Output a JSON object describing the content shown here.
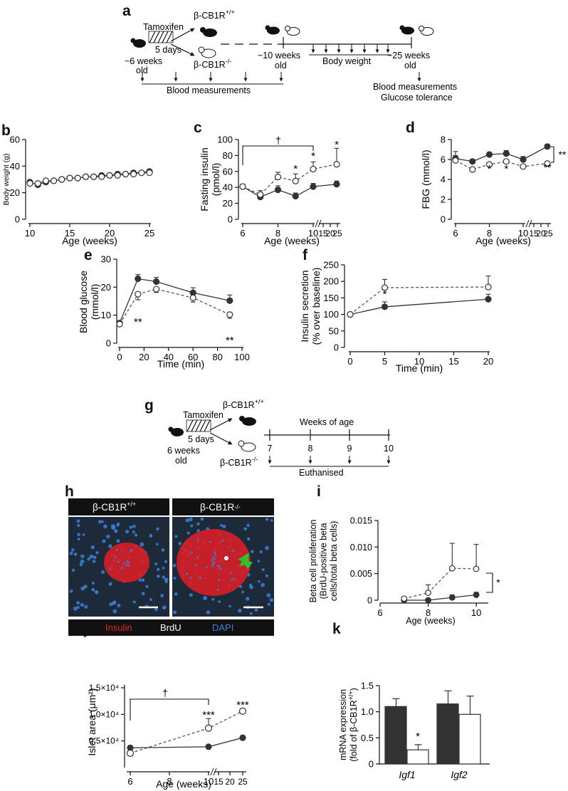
{
  "panel_letters": {
    "a": "a",
    "b": "b",
    "c": "c",
    "d": "d",
    "e": "e",
    "f": "f",
    "g": "g",
    "h": "h",
    "i": "i",
    "j": "j",
    "k": "k"
  },
  "timeline_a": {
    "tamoxifen": "Tamoxifen",
    "days": "5 days",
    "wt_label": "β-CB1R",
    "wt_sup": "+/+",
    "ko_label": "β-CB1R",
    "ko_sup": "-/-",
    "start_age_1": "~6 weeks",
    "start_age_2": "old",
    "mid_age_1": "~10 weeks",
    "mid_age_2": "old",
    "end_age_1": "~25 weeks",
    "end_age_2": "old",
    "body_weight": "Body weight",
    "blood_measurements": "Blood measurements",
    "end_blood": "Blood measurements",
    "end_glucose": "Glucose tolerance"
  },
  "timeline_g": {
    "tamoxifen": "Tamoxifen",
    "days": "5 days",
    "wt_label": "β-CB1R",
    "wt_sup": "+/+",
    "ko_label": "β-CB1R",
    "ko_sup": "-/-",
    "age_1": "6 weeks",
    "age_2": "old",
    "weeks_of_age": "Weeks of age",
    "ticks": [
      "7",
      "8",
      "9",
      "10"
    ],
    "euthanised": "Euthanised"
  },
  "micrograph_h": {
    "wt_title": "β-CB1R",
    "wt_sup": "+/+",
    "ko_title": "β-CB1R",
    "ko_sup": "-/-",
    "legend_insulin": "Insulin",
    "legend_brdu": "BrdU",
    "legend_dapi": "DAPI",
    "color_insulin": "#e8242a",
    "color_dapi": "#3d7fd6",
    "color_arrow": "#2ec02e"
  },
  "chart_data": [
    {
      "id": "b",
      "type": "line",
      "xlabel": "Age (weeks)",
      "ylabel": "Body weight (g)",
      "xlim": [
        10,
        25
      ],
      "ylim": [
        0,
        60
      ],
      "xticks": [
        "10",
        "15",
        "20",
        "25"
      ],
      "yticks": [
        "0",
        "20",
        "40",
        "60"
      ],
      "x": [
        10,
        11,
        12,
        13,
        14,
        15,
        16,
        17,
        18,
        19,
        20,
        21,
        22,
        23,
        24,
        25
      ],
      "series": [
        {
          "name": "β-CB1R+/+",
          "values": [
            28,
            26,
            28,
            29,
            30,
            31,
            31,
            32,
            32,
            33,
            33,
            34,
            34,
            35,
            35,
            36
          ]
        },
        {
          "name": "β-CB1R-/-",
          "values": [
            27,
            27,
            29,
            29,
            30,
            31,
            31,
            32,
            32,
            32,
            33,
            33,
            34,
            34,
            35,
            35
          ]
        }
      ]
    },
    {
      "id": "c",
      "type": "line",
      "xlabel": "Age (weeks)",
      "ylabel": "Fasting insulin (pmol/l)",
      "ylim": [
        0,
        100
      ],
      "xticks": [
        "6",
        "8",
        "10",
        "15",
        "20",
        "25"
      ],
      "yticks": [
        "0",
        "20",
        "40",
        "60",
        "80",
        "100"
      ],
      "x": [
        6,
        7,
        8,
        9,
        10,
        25
      ],
      "series": [
        {
          "name": "β-CB1R+/+",
          "values": [
            41,
            28,
            37,
            29,
            41,
            44
          ],
          "err": [
            2,
            3,
            5,
            4,
            4,
            4
          ]
        },
        {
          "name": "β-CB1R-/-",
          "values": [
            41,
            31,
            53,
            48,
            63,
            69
          ],
          "err": [
            3,
            5,
            6,
            9,
            9,
            20
          ]
        }
      ],
      "annotations": [
        "*",
        "*",
        "*",
        "†"
      ]
    },
    {
      "id": "d",
      "type": "line",
      "xlabel": "Age (weeks)",
      "ylabel": "FBG (mmol/l)",
      "ylim": [
        0,
        8
      ],
      "xticks": [
        "6",
        "8",
        "10",
        "15",
        "20",
        "25"
      ],
      "yticks": [
        "0",
        "2",
        "4",
        "6",
        "8"
      ],
      "x": [
        6,
        7,
        8,
        9,
        10,
        25
      ],
      "series": [
        {
          "name": "β-CB1R+/+",
          "values": [
            6.1,
            5.8,
            6.5,
            6.6,
            6.0,
            7.3
          ],
          "err": [
            0.3,
            0.2,
            0.2,
            0.3,
            0.3,
            0.2
          ]
        },
        {
          "name": "β-CB1R-/-",
          "values": [
            5.9,
            5.0,
            5.5,
            5.8,
            5.3,
            5.6
          ],
          "err": [
            0.9,
            0.2,
            0.2,
            0.2,
            0.2,
            0.2
          ]
        }
      ],
      "annotations": [
        "*",
        "*",
        "**",
        "**"
      ]
    },
    {
      "id": "e",
      "type": "line",
      "xlabel": "Time (min)",
      "ylabel": "Blood glucose (mmol/l)",
      "xlim": [
        0,
        100
      ],
      "ylim": [
        0,
        30
      ],
      "xticks": [
        "0",
        "20",
        "40",
        "60",
        "80",
        "100"
      ],
      "yticks": [
        "0",
        "10",
        "20",
        "30"
      ],
      "x": [
        0,
        15,
        30,
        60,
        90
      ],
      "series": [
        {
          "name": "β-CB1R+/+",
          "values": [
            7.2,
            23.0,
            22.0,
            18.0,
            15.2
          ],
          "err": [
            0.4,
            1.5,
            1.5,
            1.8,
            2.0
          ]
        },
        {
          "name": "β-CB1R-/-",
          "values": [
            6.8,
            17.5,
            19.3,
            16.2,
            10.2
          ],
          "err": [
            0.4,
            2.0,
            1.2,
            1.5,
            1.3
          ]
        }
      ],
      "annotations": [
        "**",
        "**"
      ]
    },
    {
      "id": "f",
      "type": "line",
      "xlabel": "Time (min)",
      "ylabel": "Insulin secretion (% over baseline)",
      "xlim": [
        0,
        20
      ],
      "ylim": [
        0,
        250
      ],
      "xticks": [
        "0",
        "5",
        "10",
        "15",
        "20"
      ],
      "yticks": [
        "0",
        "50",
        "100",
        "150",
        "200",
        "250"
      ],
      "x": [
        0,
        5,
        20
      ],
      "series": [
        {
          "name": "β-CB1R+/+",
          "values": [
            100,
            123,
            146
          ],
          "err": [
            0,
            15,
            15
          ]
        },
        {
          "name": "β-CB1R-/-",
          "values": [
            100,
            181,
            183
          ],
          "err": [
            0,
            25,
            33
          ]
        }
      ],
      "annotations": [
        "*"
      ]
    },
    {
      "id": "i",
      "type": "line",
      "xlabel": "Age (weeks)",
      "ylabel": "Beta cell proliferation (BrdU-positive beta cells/total beta cells)",
      "xlim": [
        6,
        10.5
      ],
      "ylim": [
        0,
        0.015
      ],
      "xticks": [
        "6",
        "8",
        "10"
      ],
      "yticks": [
        "0",
        "0.005",
        "0.010",
        "0.015"
      ],
      "x": [
        7,
        8,
        9,
        10
      ],
      "series": [
        {
          "name": "β-CB1R+/+",
          "values": [
            0,
            0,
            0.0005,
            0.001
          ],
          "err": [
            0,
            0,
            0.0005,
            0.0005
          ]
        },
        {
          "name": "β-CB1R-/-",
          "values": [
            0.0003,
            0.0014,
            0.006,
            0.0059
          ],
          "err": [
            0.0003,
            0.0015,
            0.0047,
            0.0046
          ]
        }
      ],
      "annotations": [
        "*"
      ]
    },
    {
      "id": "j",
      "type": "line",
      "xlabel": "Age (weeks)",
      "ylabel": "Islet area (μm²)",
      "ylim": [
        0,
        15000
      ],
      "xticks": [
        "6",
        "8",
        "10",
        "15",
        "20",
        "25"
      ],
      "yticks": [
        "0.5×10⁴",
        "1.0×10⁴",
        "1.5×10⁴"
      ],
      "x": [
        6,
        10,
        25
      ],
      "series": [
        {
          "name": "β-CB1R+/+",
          "values": [
            3700,
            3900,
            5600
          ],
          "err": [
            300,
            200,
            300
          ]
        },
        {
          "name": "β-CB1R-/-",
          "values": [
            2700,
            7400,
            10600
          ],
          "err": [
            500,
            1800,
            300
          ]
        }
      ],
      "annotations": [
        "***",
        "***",
        "†"
      ]
    },
    {
      "id": "k",
      "type": "bar",
      "xlabel": "",
      "ylabel": "mRNA expression (fold of β-CB1R+/+)",
      "ylim": [
        0,
        1.5
      ],
      "yticks": [
        "0",
        "0.5",
        "1.0",
        "1.5"
      ],
      "categories": [
        "Igf1",
        "Igf2"
      ],
      "series": [
        {
          "name": "β-CB1R+/+",
          "values": [
            1.1,
            1.15
          ],
          "err": [
            0.15,
            0.25
          ]
        },
        {
          "name": "β-CB1R-/-",
          "values": [
            0.27,
            0.95
          ],
          "err": [
            0.1,
            0.35
          ]
        }
      ],
      "annotations": [
        "*"
      ]
    }
  ]
}
